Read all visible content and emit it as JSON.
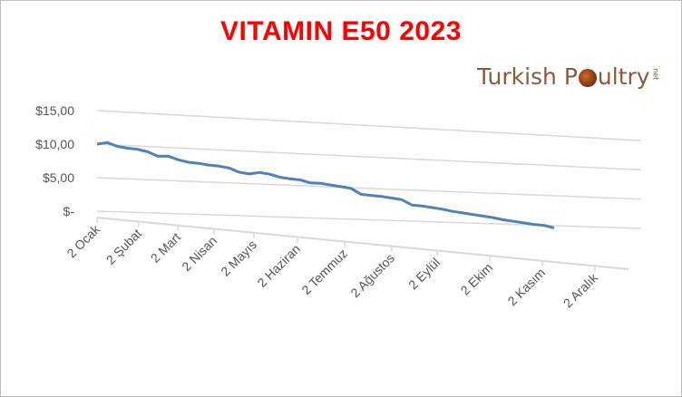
{
  "chart_data": {
    "type": "line",
    "title": "VITAMIN E50 2023",
    "xlabel": "",
    "ylabel": "",
    "ylim": [
      0,
      15
    ],
    "yticks": [
      "$15,00",
      "$10,00",
      "$5,00",
      "$-"
    ],
    "categories": [
      "2 Ocak",
      "2 Şubat",
      "2 Mart",
      "2 Nisan",
      "2 Mayıs",
      "2 Haziran",
      "2 Temmuz",
      "2 Ağustos",
      "2 Eylül",
      "2 Ekim",
      "2 Kasım",
      "2 Aralık"
    ],
    "series": [
      {
        "color": "#4f81bd",
        "x": [
          "2 Ocak",
          "9 Ocak",
          "16 Ocak",
          "23 Ocak",
          "30 Ocak",
          "6 Şubat",
          "13 Şubat",
          "20 Şubat",
          "27 Şubat",
          "6 Mart",
          "13 Mart",
          "20 Mart",
          "27 Mart",
          "3 Nisan",
          "10 Nisan",
          "17 Nisan",
          "24 Nisan",
          "1 Mayıs",
          "8 Mayıs",
          "15 Mayıs",
          "22 Mayıs",
          "29 Mayıs",
          "5 Haziran",
          "12 Haziran",
          "19 Haziran",
          "26 Haziran",
          "3 Temmuz",
          "10 Temmuz",
          "17 Temmuz",
          "24 Temmuz",
          "31 Temmuz",
          "7 Ağustos",
          "14 Ağustos",
          "21 Ağustos",
          "28 Ağustos",
          "4 Eylül",
          "11 Eylül",
          "18 Eylül",
          "25 Eylül",
          "2 Ekim",
          "9 Ekim",
          "16 Ekim",
          "23 Ekim",
          "30 Ekim",
          "6 Kasım",
          "13 Kasım"
        ],
        "values": [
          10.0,
          10.3,
          9.8,
          9.6,
          9.5,
          9.2,
          8.6,
          8.7,
          8.2,
          7.9,
          7.8,
          7.6,
          7.5,
          7.3,
          6.7,
          6.5,
          6.8,
          6.6,
          6.2,
          6.0,
          5.9,
          5.5,
          5.5,
          5.3,
          5.1,
          4.9,
          4.0,
          3.9,
          3.8,
          3.6,
          3.4,
          2.6,
          2.5,
          2.3,
          2.1,
          1.8,
          1.6,
          1.4,
          1.2,
          1.0,
          0.7,
          0.5,
          0.3,
          0.1,
          0.0,
          -0.4
        ]
      }
    ],
    "grid": true,
    "legend": "none"
  },
  "logo": {
    "text_left": "Turkish P",
    "text_right": "ultry",
    "suffix": ".net",
    "ball_color": "#b5501f"
  }
}
